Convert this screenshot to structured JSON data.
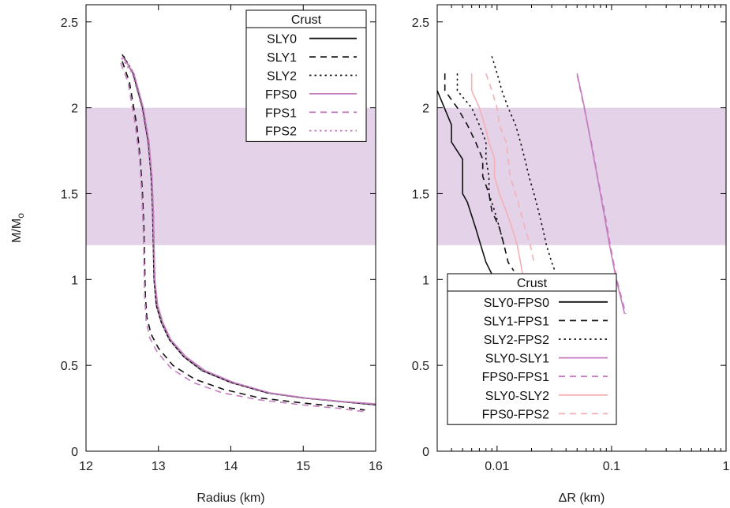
{
  "colors": {
    "band": "#e3d2e8",
    "sly": "#111111",
    "fps": "#c47ec0",
    "pink": "#f4b0b4"
  },
  "chart_data": [
    {
      "type": "line",
      "xlabel": "Radius (km)",
      "ylabel": "M/M",
      "ylabel_sub": "o",
      "xlim": [
        12,
        16
      ],
      "ylim": [
        0,
        2.6
      ],
      "xticks": [
        "12",
        "13",
        "14",
        "15",
        "16"
      ],
      "yticks": [
        "0",
        "0.5",
        "1",
        "1.5",
        "2",
        "2.5"
      ],
      "band": [
        1.2,
        2.0
      ],
      "legend": {
        "title": "Crust",
        "placement": "top-right"
      },
      "series": [
        {
          "name": "SLY0",
          "color": "#111111",
          "dash": "solid",
          "points": [
            [
              12.5,
              2.31
            ],
            [
              12.65,
              2.2
            ],
            [
              12.78,
              2.0
            ],
            [
              12.86,
              1.8
            ],
            [
              12.9,
              1.6
            ],
            [
              12.92,
              1.4
            ],
            [
              12.93,
              1.2
            ],
            [
              12.94,
              1.0
            ],
            [
              12.97,
              0.85
            ],
            [
              13.04,
              0.75
            ],
            [
              13.15,
              0.65
            ],
            [
              13.35,
              0.55
            ],
            [
              13.6,
              0.47
            ],
            [
              14.0,
              0.4
            ],
            [
              14.5,
              0.34
            ],
            [
              15.0,
              0.31
            ],
            [
              15.5,
              0.29
            ],
            [
              16.0,
              0.27
            ]
          ]
        },
        {
          "name": "SLY1",
          "color": "#111111",
          "dash": "dash",
          "points": [
            [
              12.5,
              2.27
            ],
            [
              12.6,
              2.15
            ],
            [
              12.7,
              1.9
            ],
            [
              12.75,
              1.7
            ],
            [
              12.78,
              1.5
            ],
            [
              12.8,
              1.3
            ],
            [
              12.81,
              1.1
            ],
            [
              12.82,
              0.9
            ],
            [
              12.84,
              0.78
            ],
            [
              12.9,
              0.68
            ],
            [
              13.0,
              0.6
            ],
            [
              13.2,
              0.5
            ],
            [
              13.5,
              0.42
            ],
            [
              13.9,
              0.36
            ],
            [
              14.4,
              0.31
            ],
            [
              15.0,
              0.28
            ],
            [
              15.5,
              0.26
            ],
            [
              15.85,
              0.24
            ]
          ]
        },
        {
          "name": "SLY2",
          "color": "#111111",
          "dash": "dot",
          "points": [
            [
              12.52,
              2.3
            ],
            [
              12.66,
              2.2
            ],
            [
              12.79,
              2.0
            ],
            [
              12.87,
              1.8
            ],
            [
              12.91,
              1.6
            ],
            [
              12.93,
              1.4
            ],
            [
              12.94,
              1.2
            ],
            [
              12.95,
              1.0
            ],
            [
              12.98,
              0.85
            ],
            [
              13.05,
              0.75
            ],
            [
              13.16,
              0.65
            ],
            [
              13.36,
              0.55
            ],
            [
              13.62,
              0.47
            ],
            [
              14.02,
              0.4
            ],
            [
              14.52,
              0.34
            ],
            [
              15.02,
              0.31
            ],
            [
              15.52,
              0.29
            ],
            [
              16.0,
              0.275
            ]
          ]
        },
        {
          "name": "FPS0",
          "color": "#c47ec0",
          "dash": "solid",
          "points": [
            [
              12.5,
              2.3
            ],
            [
              12.66,
              2.2
            ],
            [
              12.79,
              2.0
            ],
            [
              12.87,
              1.8
            ],
            [
              12.91,
              1.6
            ],
            [
              12.93,
              1.4
            ],
            [
              12.94,
              1.2
            ],
            [
              12.95,
              1.0
            ],
            [
              12.99,
              0.85
            ],
            [
              13.06,
              0.75
            ],
            [
              13.17,
              0.65
            ],
            [
              13.38,
              0.55
            ],
            [
              13.64,
              0.47
            ],
            [
              14.04,
              0.4
            ],
            [
              14.54,
              0.34
            ],
            [
              15.04,
              0.31
            ],
            [
              15.54,
              0.29
            ],
            [
              16.0,
              0.275
            ]
          ]
        },
        {
          "name": "FPS1",
          "color": "#c47ec0",
          "dash": "dash",
          "points": [
            [
              12.48,
              2.26
            ],
            [
              12.58,
              2.15
            ],
            [
              12.68,
              1.9
            ],
            [
              12.74,
              1.7
            ],
            [
              12.77,
              1.5
            ],
            [
              12.79,
              1.3
            ],
            [
              12.8,
              1.1
            ],
            [
              12.81,
              0.9
            ],
            [
              12.83,
              0.76
            ],
            [
              12.88,
              0.66
            ],
            [
              12.98,
              0.58
            ],
            [
              13.18,
              0.48
            ],
            [
              13.48,
              0.4
            ],
            [
              13.88,
              0.34
            ],
            [
              14.38,
              0.3
            ],
            [
              14.98,
              0.27
            ],
            [
              15.48,
              0.25
            ],
            [
              15.85,
              0.23
            ]
          ]
        },
        {
          "name": "FPS2",
          "color": "#c47ec0",
          "dash": "dot",
          "points": [
            [
              12.49,
              2.29
            ],
            [
              12.64,
              2.2
            ],
            [
              12.77,
              2.0
            ],
            [
              12.85,
              1.8
            ],
            [
              12.9,
              1.6
            ],
            [
              12.92,
              1.4
            ],
            [
              12.93,
              1.2
            ],
            [
              12.94,
              1.0
            ],
            [
              12.97,
              0.85
            ],
            [
              13.04,
              0.75
            ],
            [
              13.15,
              0.65
            ],
            [
              13.35,
              0.55
            ],
            [
              13.61,
              0.47
            ],
            [
              14.01,
              0.4
            ],
            [
              14.51,
              0.34
            ],
            [
              15.01,
              0.31
            ],
            [
              15.51,
              0.29
            ],
            [
              16.0,
              0.272
            ]
          ]
        }
      ]
    },
    {
      "type": "line",
      "xlabel": "ΔR (km)",
      "xscale": "log",
      "xlim": [
        0.003,
        1
      ],
      "ylim": [
        0,
        2.6
      ],
      "xticks": [
        {
          "value": 0.01,
          "label": "0.01"
        },
        {
          "value": 0.1,
          "label": "0.1"
        },
        {
          "value": 1,
          "label": "1"
        }
      ],
      "yticks": [
        "0",
        "0.5",
        "1",
        "1.5",
        "2",
        "2.5"
      ],
      "band": [
        1.2,
        2.0
      ],
      "legend": {
        "title": "Crust",
        "placement": "bottom-left"
      },
      "series": [
        {
          "name": "SLY0-FPS0",
          "color": "#111111",
          "dash": "solid",
          "points": [
            [
              0.003,
              2.1
            ],
            [
              0.004,
              1.9
            ],
            [
              0.004,
              1.8
            ],
            [
              0.005,
              1.7
            ],
            [
              0.005,
              1.5
            ],
            [
              0.0055,
              1.45
            ],
            [
              0.0065,
              1.3
            ],
            [
              0.0072,
              1.2
            ],
            [
              0.008,
              1.1
            ],
            [
              0.0095,
              1.0
            ],
            [
              0.011,
              0.9
            ]
          ]
        },
        {
          "name": "SLY1-FPS1",
          "color": "#111111",
          "dash": "dash",
          "points": [
            [
              0.0035,
              2.2
            ],
            [
              0.0035,
              2.1
            ],
            [
              0.0045,
              2.0
            ],
            [
              0.0055,
              1.9
            ],
            [
              0.0065,
              1.8
            ],
            [
              0.0075,
              1.7
            ],
            [
              0.0075,
              1.6
            ],
            [
              0.0085,
              1.5
            ],
            [
              0.009,
              1.4
            ],
            [
              0.0105,
              1.3
            ],
            [
              0.0115,
              1.2
            ],
            [
              0.0125,
              1.1
            ],
            [
              0.014,
              1.05
            ]
          ]
        },
        {
          "name": "SLY2-FPS2",
          "color": "#111111",
          "dash": "dot",
          "points": [
            [
              0.0045,
              2.2
            ],
            [
              0.0045,
              2.1
            ],
            [
              0.006,
              2.0
            ],
            [
              0.007,
              1.9
            ],
            [
              0.008,
              1.8
            ],
            [
              0.008,
              1.7
            ],
            [
              0.0085,
              1.6
            ],
            [
              0.0085,
              1.5
            ],
            [
              0.0095,
              1.4
            ],
            [
              0.0105,
              1.3
            ],
            [
              0.0115,
              1.2
            ]
          ]
        },
        {
          "name": "SLY0-SLY1",
          "color": "#c47ec0",
          "dash": "solid",
          "points": [
            [
              0.05,
              2.2
            ],
            [
              0.058,
              2.0
            ],
            [
              0.066,
              1.8
            ],
            [
              0.075,
              1.6
            ],
            [
              0.085,
              1.4
            ],
            [
              0.096,
              1.2
            ],
            [
              0.11,
              1.0
            ],
            [
              0.13,
              0.8
            ]
          ]
        },
        {
          "name": "FPS0-FPS1",
          "color": "#c47ec0",
          "dash": "dash",
          "points": [
            [
              0.05,
              2.19
            ],
            [
              0.058,
              1.99
            ],
            [
              0.067,
              1.79
            ],
            [
              0.076,
              1.59
            ],
            [
              0.087,
              1.39
            ],
            [
              0.098,
              1.19
            ],
            [
              0.112,
              0.99
            ],
            [
              0.133,
              0.8
            ]
          ]
        },
        {
          "name": "SLY0-SLY2",
          "color": "#f4b0b4",
          "dash": "solid",
          "points": [
            [
              0.006,
              2.2
            ],
            [
              0.006,
              2.1
            ],
            [
              0.007,
              2.0
            ],
            [
              0.0078,
              1.9
            ],
            [
              0.0085,
              1.8
            ],
            [
              0.0095,
              1.7
            ],
            [
              0.0095,
              1.6
            ],
            [
              0.0105,
              1.5
            ],
            [
              0.012,
              1.4
            ],
            [
              0.0135,
              1.3
            ],
            [
              0.015,
              1.2
            ],
            [
              0.016,
              1.1
            ],
            [
              0.017,
              1.0
            ]
          ]
        },
        {
          "name": "FPS0-FPS2",
          "color": "#f4b0b4",
          "dash": "dash",
          "points": [
            [
              0.008,
              2.2
            ],
            [
              0.009,
              2.1
            ],
            [
              0.01,
              2.0
            ],
            [
              0.0105,
              1.9
            ],
            [
              0.012,
              1.8
            ],
            [
              0.0125,
              1.7
            ],
            [
              0.013,
              1.6
            ],
            [
              0.0145,
              1.5
            ],
            [
              0.016,
              1.4
            ],
            [
              0.0175,
              1.3
            ],
            [
              0.0195,
              1.2
            ],
            [
              0.021,
              1.1
            ]
          ]
        },
        {
          "name": "",
          "color": "#111111",
          "dash": "dot",
          "points": [
            [
              0.009,
              2.3
            ],
            [
              0.01,
              2.2
            ],
            [
              0.011,
              2.1
            ],
            [
              0.0125,
              2.0
            ],
            [
              0.0145,
              1.9
            ],
            [
              0.016,
              1.8
            ],
            [
              0.0175,
              1.7
            ],
            [
              0.019,
              1.6
            ],
            [
              0.021,
              1.5
            ],
            [
              0.023,
              1.4
            ],
            [
              0.025,
              1.3
            ],
            [
              0.027,
              1.2
            ],
            [
              0.03,
              1.1
            ],
            [
              0.032,
              1.05
            ]
          ]
        }
      ]
    }
  ]
}
